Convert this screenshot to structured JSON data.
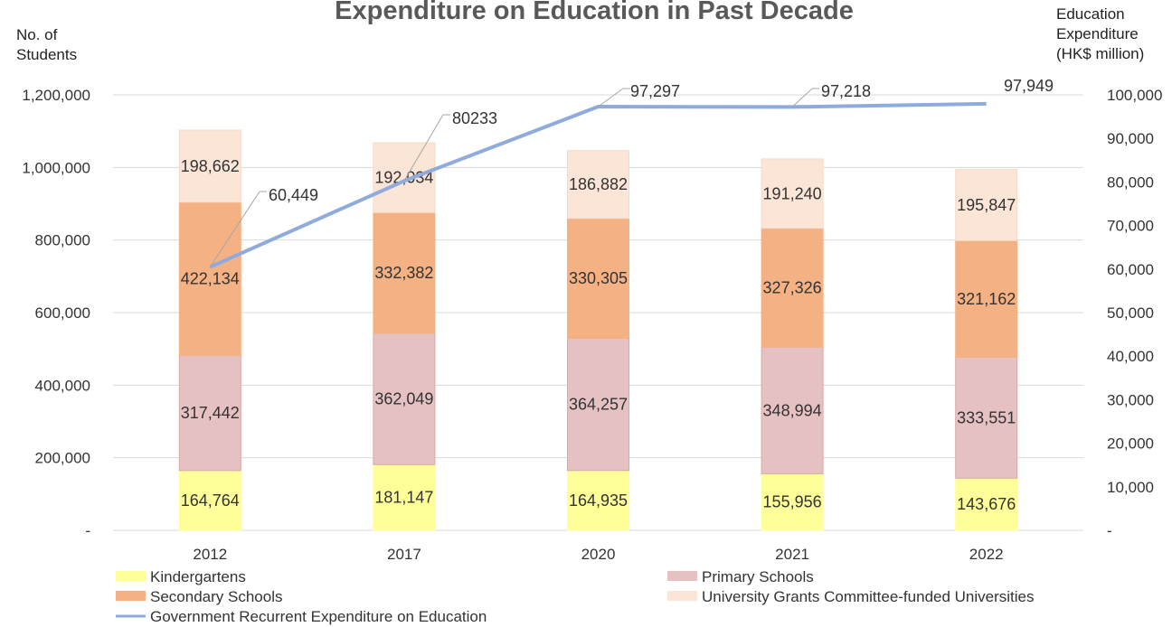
{
  "chart_data": {
    "type": "bar",
    "stacked": true,
    "title": "Expenditure on Education in Past Decade",
    "y_left_label": [
      "No. of",
      "Students"
    ],
    "y_right_label": [
      "Education",
      "Expenditure",
      "(HK$ million)"
    ],
    "categories": [
      "2012",
      "2017",
      "2020",
      "2021",
      "2022"
    ],
    "y_left_ticks": [
      "-",
      "200,000",
      "400,000",
      "600,000",
      "800,000",
      "1,000,000",
      "1,200,000"
    ],
    "y_left_range": [
      0,
      1200000
    ],
    "y_right_ticks": [
      "-",
      "10,000",
      "20,000",
      "30,000",
      "40,000",
      "50,000",
      "60,000",
      "70,000",
      "80,000",
      "90,000",
      "100,000"
    ],
    "y_right_range": [
      0,
      100000
    ],
    "grid": true,
    "legend_position": "bottom",
    "series": [
      {
        "name": "Kindergartens",
        "color": "#FFFF99",
        "values": [
          164764,
          181147,
          164935,
          155956,
          143676
        ],
        "labels": [
          "164,764",
          "181,147",
          "164,935",
          "155,956",
          "143,676"
        ]
      },
      {
        "name": "Primary Schools",
        "color": "#E6C1C1",
        "values": [
          317442,
          362049,
          364257,
          348994,
          333551
        ],
        "labels": [
          "317,442",
          "362,049",
          "364,257",
          "348,994",
          "333,551"
        ]
      },
      {
        "name": "Secondary Schools",
        "color": "#F4B183",
        "values": [
          422134,
          332382,
          330305,
          327326,
          321162
        ],
        "labels": [
          "422,134",
          "332,382",
          "330,305",
          "327,326",
          "321,162"
        ]
      },
      {
        "name": "University Grants Committee-funded Universities",
        "color": "#FBE5D6",
        "values": [
          198662,
          192034,
          186882,
          191240,
          195847
        ],
        "labels": [
          "198,662",
          "192,034",
          "186,882",
          "191,240",
          "195,847"
        ]
      }
    ],
    "line_series": {
      "name": "Government Recurrent Expenditure on Education",
      "color": "#8FAADC",
      "axis": "right",
      "values": [
        60449,
        80233,
        97297,
        97218,
        97949
      ],
      "labels": [
        "60,449",
        "80233",
        "97,297",
        "97,218",
        "97,949"
      ]
    }
  }
}
